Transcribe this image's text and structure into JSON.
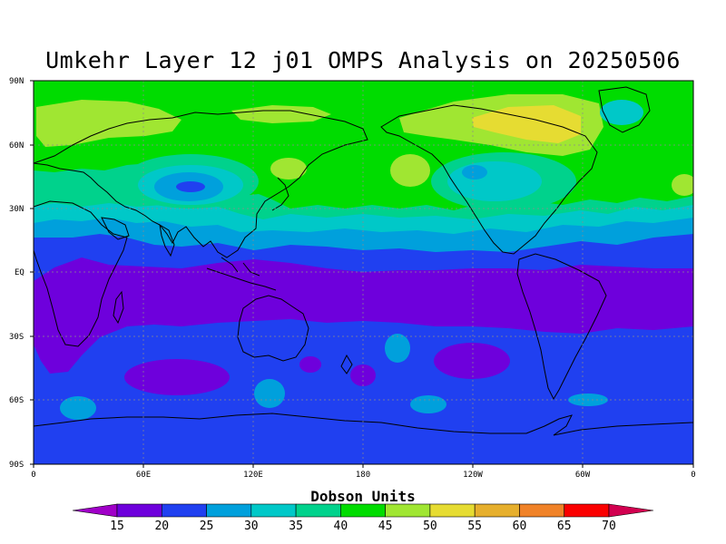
{
  "title": "Umkehr Layer 12 j01 OMPS Analysis on 20250506",
  "lat_labels": [
    "90N",
    "60N",
    "30N",
    "EQ",
    "30S",
    "60S",
    "90S"
  ],
  "lon_labels": [
    "0",
    "60E",
    "120E",
    "180",
    "120W",
    "60W",
    "0"
  ],
  "colorbar": {
    "title": "Dobson Units",
    "levels": [
      "15",
      "20",
      "25",
      "30",
      "35",
      "40",
      "45",
      "50",
      "55",
      "60",
      "65",
      "70"
    ],
    "colors": [
      "#a000c8",
      "#6e00dc",
      "#2040f0",
      "#00a0dc",
      "#00c8c8",
      "#00d28c",
      "#00dc00",
      "#a0e632",
      "#e6dc32",
      "#e6af2d",
      "#f08228",
      "#fa0000",
      "#d20050"
    ]
  },
  "map_colors": {
    "band_15_20": "#6e00dc",
    "band_20_25": "#2040f0",
    "band_25_30": "#00a0dc",
    "band_30_35": "#00c8c8",
    "band_35_40": "#00d28c",
    "band_40_45": "#00dc00",
    "band_45_50": "#a0e632",
    "band_50_55": "#e6dc32",
    "band_55_60": "#e6af2d"
  }
}
